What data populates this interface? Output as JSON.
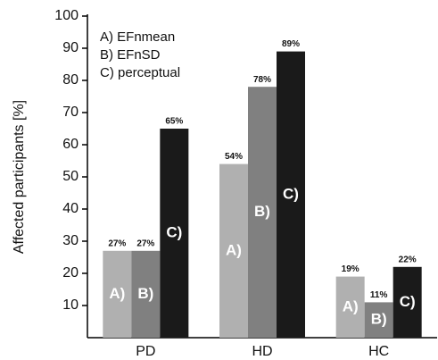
{
  "chart_data": {
    "type": "bar",
    "y_label": "Affected participants [%]",
    "categories": [
      "PD",
      "HD",
      "HC"
    ],
    "series": [
      {
        "name": "A) EFnmean",
        "label": "A)",
        "color": "#b0b0b0",
        "values": [
          27,
          54,
          19
        ],
        "value_labels": [
          "27%",
          "54%",
          "19%"
        ]
      },
      {
        "name": "B) EFnSD",
        "label": "B)",
        "color": "#808080",
        "values": [
          27,
          78,
          11
        ],
        "value_labels": [
          "27%",
          "78%",
          "11%"
        ]
      },
      {
        "name": "C) perceptual",
        "label": "C)",
        "color": "#1a1a1a",
        "values": [
          65,
          89,
          22
        ],
        "value_labels": [
          "65%",
          "89%",
          "22%"
        ]
      }
    ],
    "ylim": [
      0,
      100
    ],
    "yticks": [
      10,
      20,
      30,
      40,
      50,
      60,
      70,
      80,
      90,
      100
    ],
    "legend": "top-left"
  }
}
